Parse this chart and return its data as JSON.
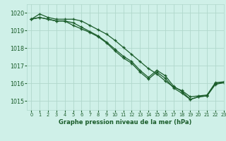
{
  "bg_color": "#cff0e8",
  "grid_color": "#b0d8cc",
  "line_color": "#1a5c2a",
  "title": "Graphe pression niveau de la mer (hPa)",
  "xlim": [
    -0.5,
    23
  ],
  "ylim": [
    1014.5,
    1020.5
  ],
  "yticks": [
    1015,
    1016,
    1017,
    1018,
    1019,
    1020
  ],
  "xticks": [
    0,
    1,
    2,
    3,
    4,
    5,
    6,
    7,
    8,
    9,
    10,
    11,
    12,
    13,
    14,
    15,
    16,
    17,
    18,
    19,
    20,
    21,
    22,
    23
  ],
  "series": [
    [
      1019.65,
      1019.95,
      1019.75,
      1019.65,
      1019.65,
      1019.65,
      1019.55,
      1019.3,
      1019.05,
      1018.8,
      1018.45,
      1018.05,
      1017.65,
      1017.25,
      1016.85,
      1016.55,
      1016.15,
      1015.8,
      1015.6,
      1015.25,
      1015.3,
      1015.35,
      1016.05,
      1016.1
    ],
    [
      1019.65,
      1019.75,
      1019.65,
      1019.55,
      1019.55,
      1019.45,
      1019.2,
      1018.95,
      1018.7,
      1018.35,
      1017.95,
      1017.55,
      1017.25,
      1016.75,
      1016.35,
      1016.75,
      1016.45,
      1015.85,
      1015.55,
      1015.1,
      1015.25,
      1015.3,
      1016.0,
      1016.05
    ],
    [
      1019.65,
      1019.75,
      1019.65,
      1019.55,
      1019.55,
      1019.3,
      1019.1,
      1018.9,
      1018.65,
      1018.3,
      1017.85,
      1017.45,
      1017.15,
      1016.65,
      1016.25,
      1016.65,
      1016.3,
      1015.75,
      1015.45,
      1015.1,
      1015.25,
      1015.3,
      1015.95,
      1016.05
    ]
  ]
}
